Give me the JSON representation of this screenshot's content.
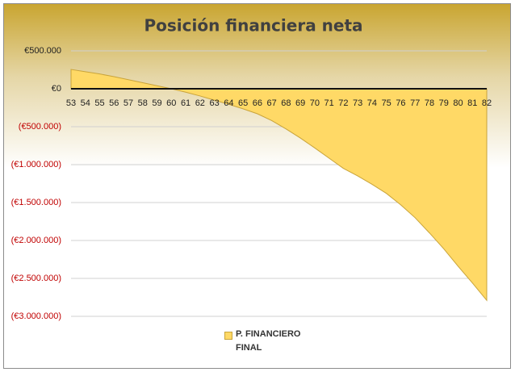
{
  "chart_data": {
    "type": "area",
    "title": "Posición financiera neta",
    "categories": [
      "53",
      "54",
      "55",
      "56",
      "57",
      "58",
      "59",
      "60",
      "61",
      "62",
      "63",
      "64",
      "65",
      "66",
      "67",
      "68",
      "69",
      "70",
      "71",
      "72",
      "73",
      "74",
      "75",
      "76",
      "77",
      "78",
      "79",
      "80",
      "81",
      "82"
    ],
    "series": [
      {
        "name": "P. FINANCIERO FINAL",
        "color": "#ffd966",
        "values": [
          255000,
          225000,
          195000,
          160000,
          120000,
          80000,
          40000,
          0,
          -45000,
          -95000,
          -150000,
          -205000,
          -265000,
          -330000,
          -420000,
          -530000,
          -650000,
          -780000,
          -915000,
          -1050000,
          -1150000,
          -1260000,
          -1380000,
          -1530000,
          -1700000,
          -1900000,
          -2110000,
          -2340000,
          -2560000,
          -2790000
        ]
      }
    ],
    "ylim": [
      -3000000,
      500000
    ],
    "yticks": [
      {
        "value": -3000000,
        "label": "(€3.000.000)"
      },
      {
        "value": -2500000,
        "label": "(€2.500.000)"
      },
      {
        "value": -2000000,
        "label": "(€2.000.000)"
      },
      {
        "value": -1500000,
        "label": "(€1.500.000)"
      },
      {
        "value": -1000000,
        "label": "(€1.000.000)"
      },
      {
        "value": -500000,
        "label": "(€500.000)"
      },
      {
        "value": 0,
        "label": "€0"
      },
      {
        "value": 500000,
        "label": "€500.000"
      }
    ],
    "negative_tick_color": "#c00000",
    "grid": true
  }
}
